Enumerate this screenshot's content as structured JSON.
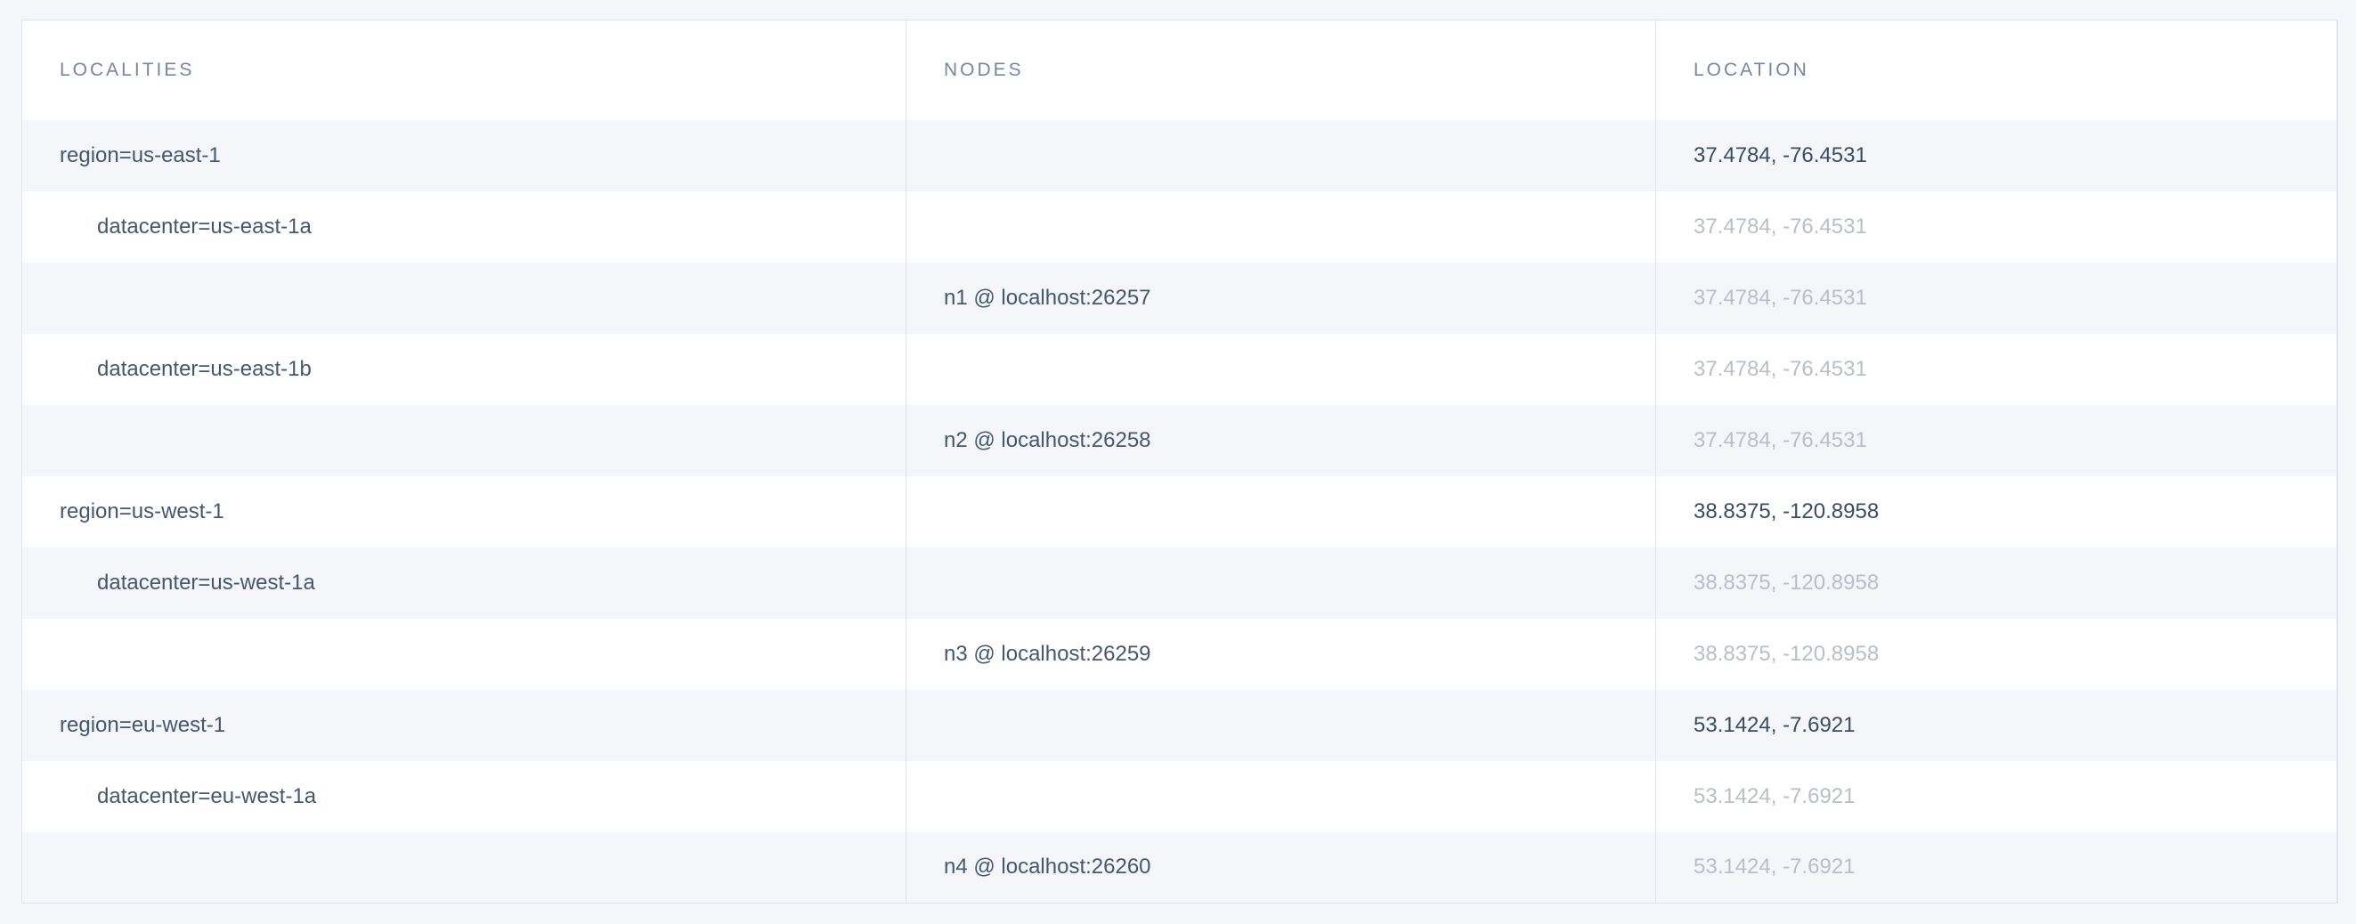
{
  "colors": {
    "page_background": "#f4f6fa",
    "table_background": "#ffffff",
    "row_stripe": "#f4f6fa",
    "table_border": "#e0e4ec",
    "header_text": "#7886a4",
    "primary_text": "#47566f",
    "location_dark_text": "#3c4b64",
    "location_muted_text": "#b9bec8"
  },
  "table": {
    "columns": [
      {
        "id": "localities",
        "label": "LOCALITIES"
      },
      {
        "id": "nodes",
        "label": "NODES"
      },
      {
        "id": "location",
        "label": "LOCATION"
      }
    ],
    "rows": [
      {
        "type": "region",
        "locality": "region=us-east-1",
        "node": "",
        "location": "37.4784, -76.4531",
        "indent": 0,
        "location_style": "dark"
      },
      {
        "type": "datacenter",
        "locality": "datacenter=us-east-1a",
        "node": "",
        "location": "37.4784, -76.4531",
        "indent": 1,
        "location_style": "muted"
      },
      {
        "type": "node",
        "locality": "",
        "node": "n1 @ localhost:26257",
        "location": "37.4784, -76.4531",
        "indent": 0,
        "location_style": "muted"
      },
      {
        "type": "datacenter",
        "locality": "datacenter=us-east-1b",
        "node": "",
        "location": "37.4784, -76.4531",
        "indent": 1,
        "location_style": "muted"
      },
      {
        "type": "node",
        "locality": "",
        "node": "n2 @ localhost:26258",
        "location": "37.4784, -76.4531",
        "indent": 0,
        "location_style": "muted"
      },
      {
        "type": "region",
        "locality": "region=us-west-1",
        "node": "",
        "location": "38.8375, -120.8958",
        "indent": 0,
        "location_style": "dark"
      },
      {
        "type": "datacenter",
        "locality": "datacenter=us-west-1a",
        "node": "",
        "location": "38.8375, -120.8958",
        "indent": 1,
        "location_style": "muted"
      },
      {
        "type": "node",
        "locality": "",
        "node": "n3 @ localhost:26259",
        "location": "38.8375, -120.8958",
        "indent": 0,
        "location_style": "muted"
      },
      {
        "type": "region",
        "locality": "region=eu-west-1",
        "node": "",
        "location": "53.1424, -7.6921",
        "indent": 0,
        "location_style": "dark"
      },
      {
        "type": "datacenter",
        "locality": "datacenter=eu-west-1a",
        "node": "",
        "location": "53.1424, -7.6921",
        "indent": 1,
        "location_style": "muted"
      },
      {
        "type": "node",
        "locality": "",
        "node": "n4 @ localhost:26260",
        "location": "53.1424, -7.6921",
        "indent": 0,
        "location_style": "muted"
      }
    ]
  }
}
